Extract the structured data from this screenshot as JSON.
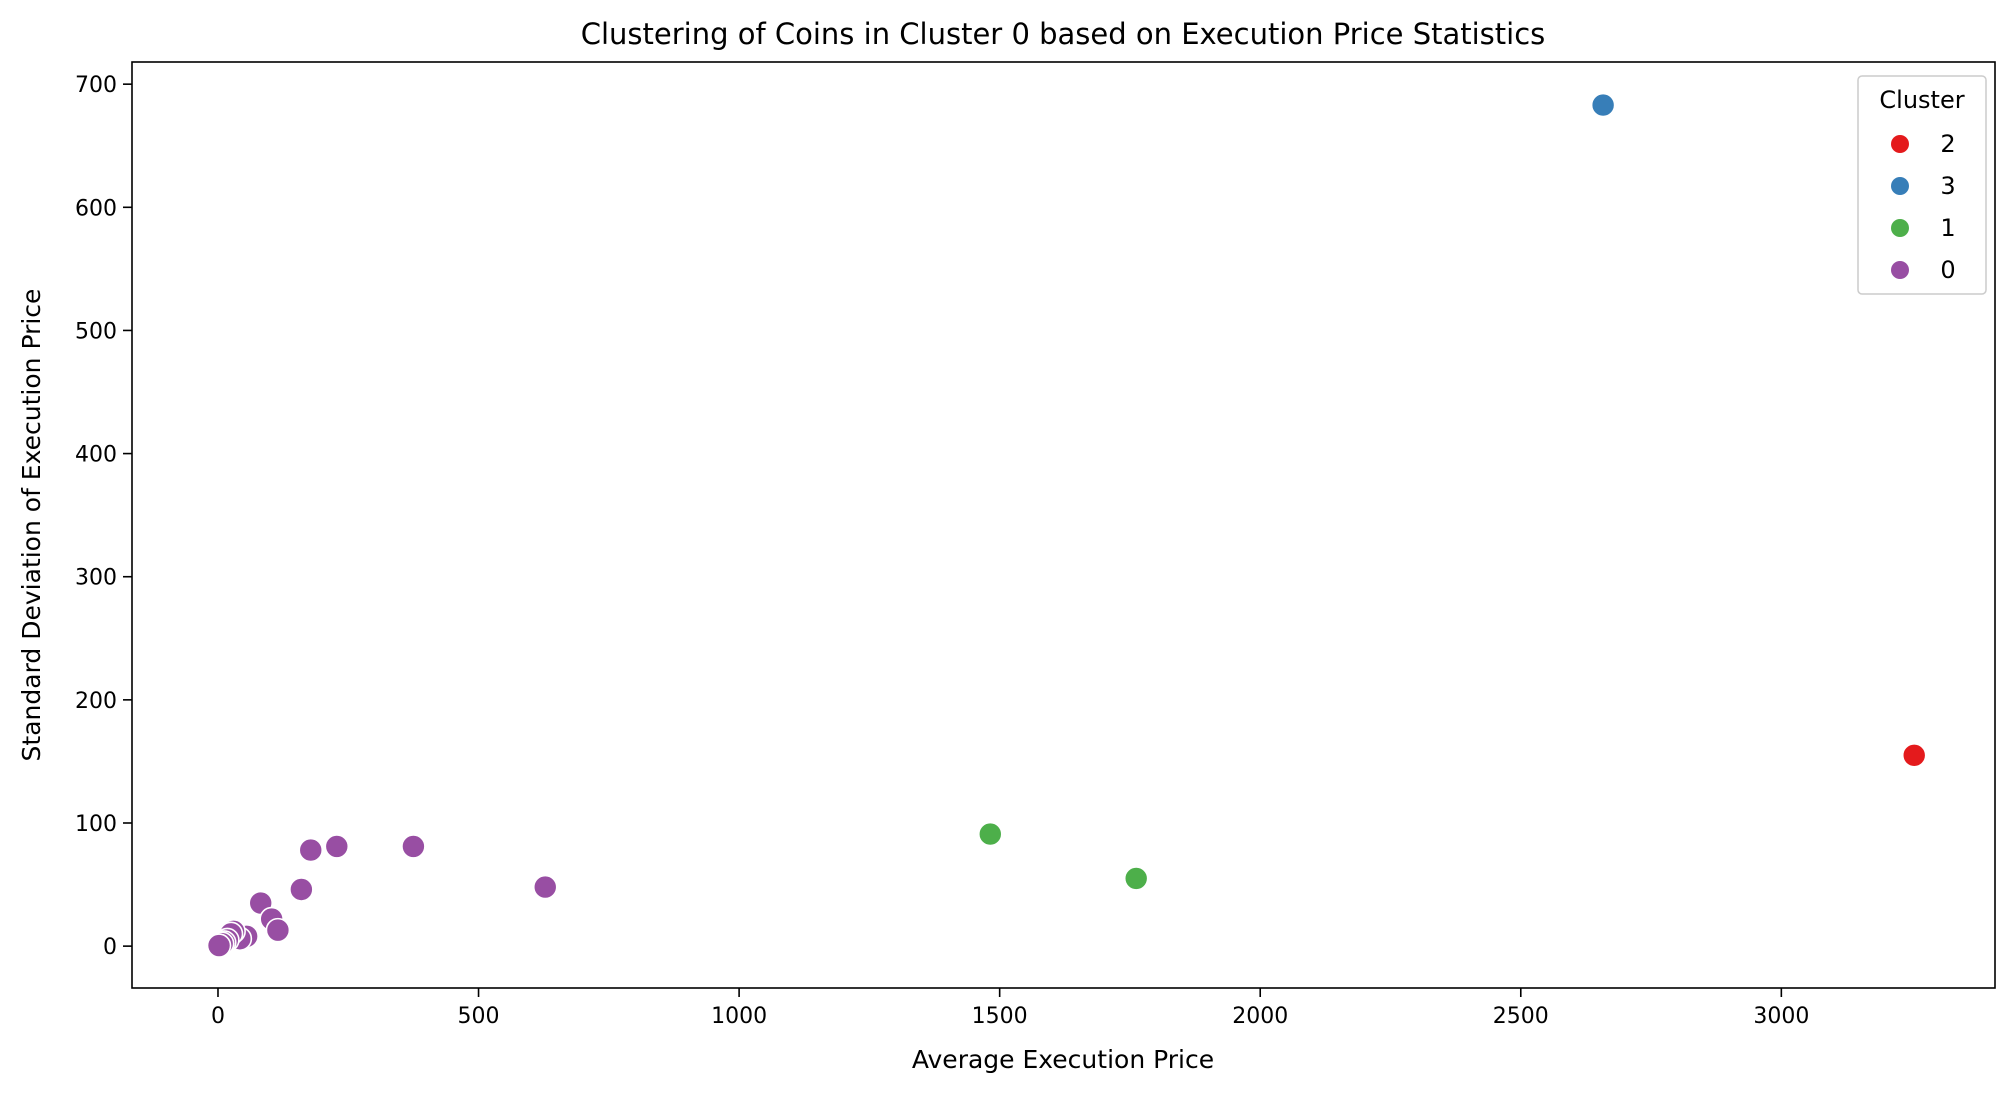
{
  "chart_data": {
    "type": "scatter",
    "title": "Clustering of Coins in Cluster 0 based on Execution Price Statistics",
    "xlabel": "Average Execution Price",
    "ylabel": "Standard Deviation of Execution Price",
    "xlim": [
      -165,
      3410
    ],
    "ylim": [
      -34,
      718
    ],
    "xticks": [
      0,
      500,
      1000,
      1500,
      2000,
      2500,
      3000
    ],
    "yticks": [
      0,
      100,
      200,
      300,
      400,
      500,
      600,
      700
    ],
    "grid": false,
    "legend": {
      "title": "Cluster",
      "placement": "top-right"
    },
    "series": [
      {
        "name": "2",
        "color": "#e41a1c",
        "points": [
          [
            3255,
            155
          ]
        ]
      },
      {
        "name": "3",
        "color": "#377eb8",
        "points": [
          [
            2658,
            683
          ]
        ]
      },
      {
        "name": "1",
        "color": "#4daf4a",
        "points": [
          [
            1482,
            91
          ],
          [
            1762,
            55
          ]
        ]
      },
      {
        "name": "0",
        "color": "#984ea3",
        "points": [
          [
            628,
            48
          ],
          [
            375,
            81
          ],
          [
            228,
            81
          ],
          [
            178,
            78
          ],
          [
            160,
            46
          ],
          [
            82,
            35
          ],
          [
            103,
            22
          ],
          [
            115,
            13
          ],
          [
            55,
            8
          ],
          [
            42,
            6
          ],
          [
            30,
            12
          ],
          [
            25,
            10
          ],
          [
            18,
            5
          ],
          [
            12,
            3
          ],
          [
            8,
            2
          ],
          [
            2,
            0.5
          ]
        ]
      }
    ]
  }
}
